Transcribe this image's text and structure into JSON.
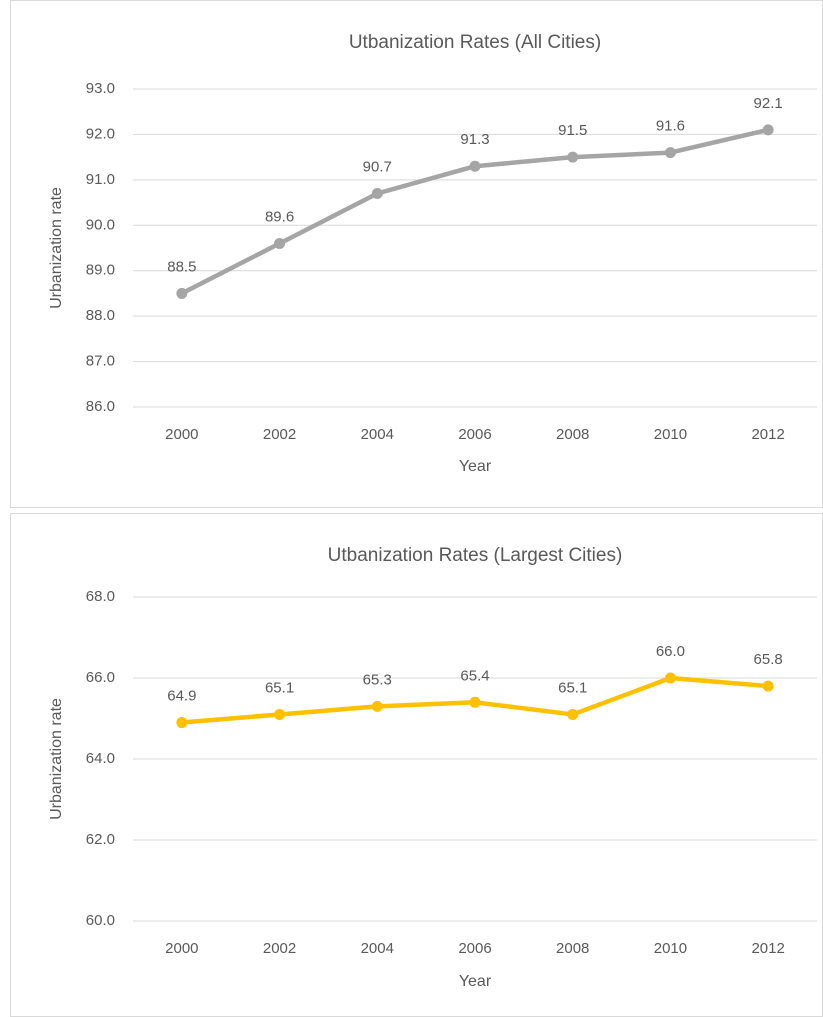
{
  "chart_data": [
    {
      "type": "line",
      "title": "Utbanization Rates (All Cities)",
      "x_label": "Year",
      "y_label": "Urbanization rate",
      "categories": [
        "2000",
        "2002",
        "2004",
        "2006",
        "2008",
        "2010",
        "2012"
      ],
      "series": [
        {
          "color": "#a5a5a5",
          "values": [
            88.5,
            89.6,
            90.7,
            91.3,
            91.5,
            91.6,
            92.1
          ]
        }
      ],
      "ylim": [
        86,
        93
      ],
      "yticks": [
        {
          "value": 86,
          "label": "86.0"
        },
        {
          "value": 87,
          "label": "87.0"
        },
        {
          "value": 88,
          "label": "88.0"
        },
        {
          "value": 89,
          "label": "89.0"
        },
        {
          "value": 90,
          "label": "90.0"
        },
        {
          "value": 91,
          "label": "91.0"
        },
        {
          "value": 92,
          "label": "92.0"
        },
        {
          "value": 93,
          "label": "93.0"
        }
      ],
      "grid": true
    },
    {
      "type": "line",
      "title": "Utbanization Rates (Largest Cities)",
      "x_label": "Year",
      "y_label": "Urbanization rate",
      "categories": [
        "2000",
        "2002",
        "2004",
        "2006",
        "2008",
        "2010",
        "2012"
      ],
      "series": [
        {
          "color": "#ffc000",
          "values": [
            64.9,
            65.1,
            65.3,
            65.4,
            65.1,
            66,
            65.8
          ],
          "value_labels": [
            "64.9",
            "65.1",
            "65.3",
            "65.4",
            "65.1",
            "66.0",
            "65.8"
          ]
        }
      ],
      "ylim": [
        60,
        68
      ],
      "yticks": [
        {
          "value": 60,
          "label": "60.0"
        },
        {
          "value": 62,
          "label": "62.0"
        },
        {
          "value": 64,
          "label": "64.0"
        },
        {
          "value": 66,
          "label": "66.0"
        },
        {
          "value": 68,
          "label": "68.0"
        }
      ],
      "grid": true
    }
  ]
}
